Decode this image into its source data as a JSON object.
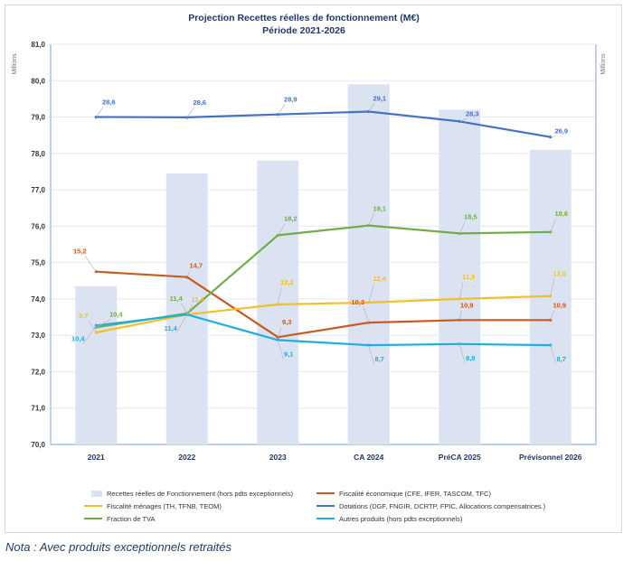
{
  "chart_data": {
    "type": "bar-line",
    "title": "Projection Recettes réelles de fonctionnement (M€)",
    "subtitle": "Période 2021-2026",
    "y_axis_label": "Millions",
    "y2_axis_label": "Millions",
    "ylim": [
      70,
      81
    ],
    "yticks": [
      "70,0",
      "71,0",
      "72,0",
      "73,0",
      "74,0",
      "75,0",
      "76,0",
      "77,0",
      "78,0",
      "79,0",
      "80,0",
      "81,0"
    ],
    "categories": [
      "2021",
      "2022",
      "2023",
      "CA 2024",
      "PréCA 2025",
      "Prévisonnel 2026"
    ],
    "bars": {
      "name": "Recettes réelles de Fonctionnement (hors pdts exceptionnels)",
      "color": "#dbe3f3",
      "values": [
        74.35,
        77.45,
        77.8,
        79.9,
        79.2,
        78.1
      ]
    },
    "series": [
      {
        "name": "Fiscalité économique (CFE, IFER, TASCOM, TFC)",
        "color": "#c65a1f",
        "values": [
          74.75,
          74.6,
          72.95,
          73.35,
          73.42,
          73.42
        ],
        "labels": [
          "15,2",
          "14,7",
          "9,3",
          "10,3",
          "10,9",
          "10,9"
        ]
      },
      {
        "name": "Fiscalité ménages (TH, TFNB, TEOM)",
        "color": "#f2bf2a",
        "values": [
          73.08,
          73.57,
          73.85,
          73.9,
          74.0,
          74.08
        ],
        "labels": [
          "9,7",
          "11,4",
          "12,2",
          "12,4",
          "11,9",
          "12,0"
        ]
      },
      {
        "name": "Dotations (DGF, FNGIR, DCRTP, FPIC, Allocations compensatrices.)",
        "color": "#4472c4",
        "values": [
          79.0,
          78.99,
          79.07,
          79.15,
          78.88,
          78.45
        ],
        "labels": [
          "28,6",
          "28,6",
          "28,9",
          "29,1",
          "28,3",
          "26,9"
        ]
      },
      {
        "name": "Fraction de TVA",
        "color": "#70ad47",
        "values": [
          73.22,
          73.6,
          75.75,
          76.02,
          75.8,
          75.84
        ],
        "labels": [
          "10,4",
          "11,4",
          "18,2",
          "19,1",
          "18,5",
          "18,6"
        ]
      },
      {
        "name": "Autres produits (hors pdts exceptionnels)",
        "color": "#1eaee0",
        "values": [
          73.27,
          73.57,
          72.87,
          72.73,
          72.76,
          72.73
        ],
        "labels": [
          "10,4",
          "11,4",
          "9,1",
          "8,7",
          "8,8",
          "8,7"
        ]
      }
    ]
  },
  "note": "Nota : Avec produits exceptionnels retraités"
}
